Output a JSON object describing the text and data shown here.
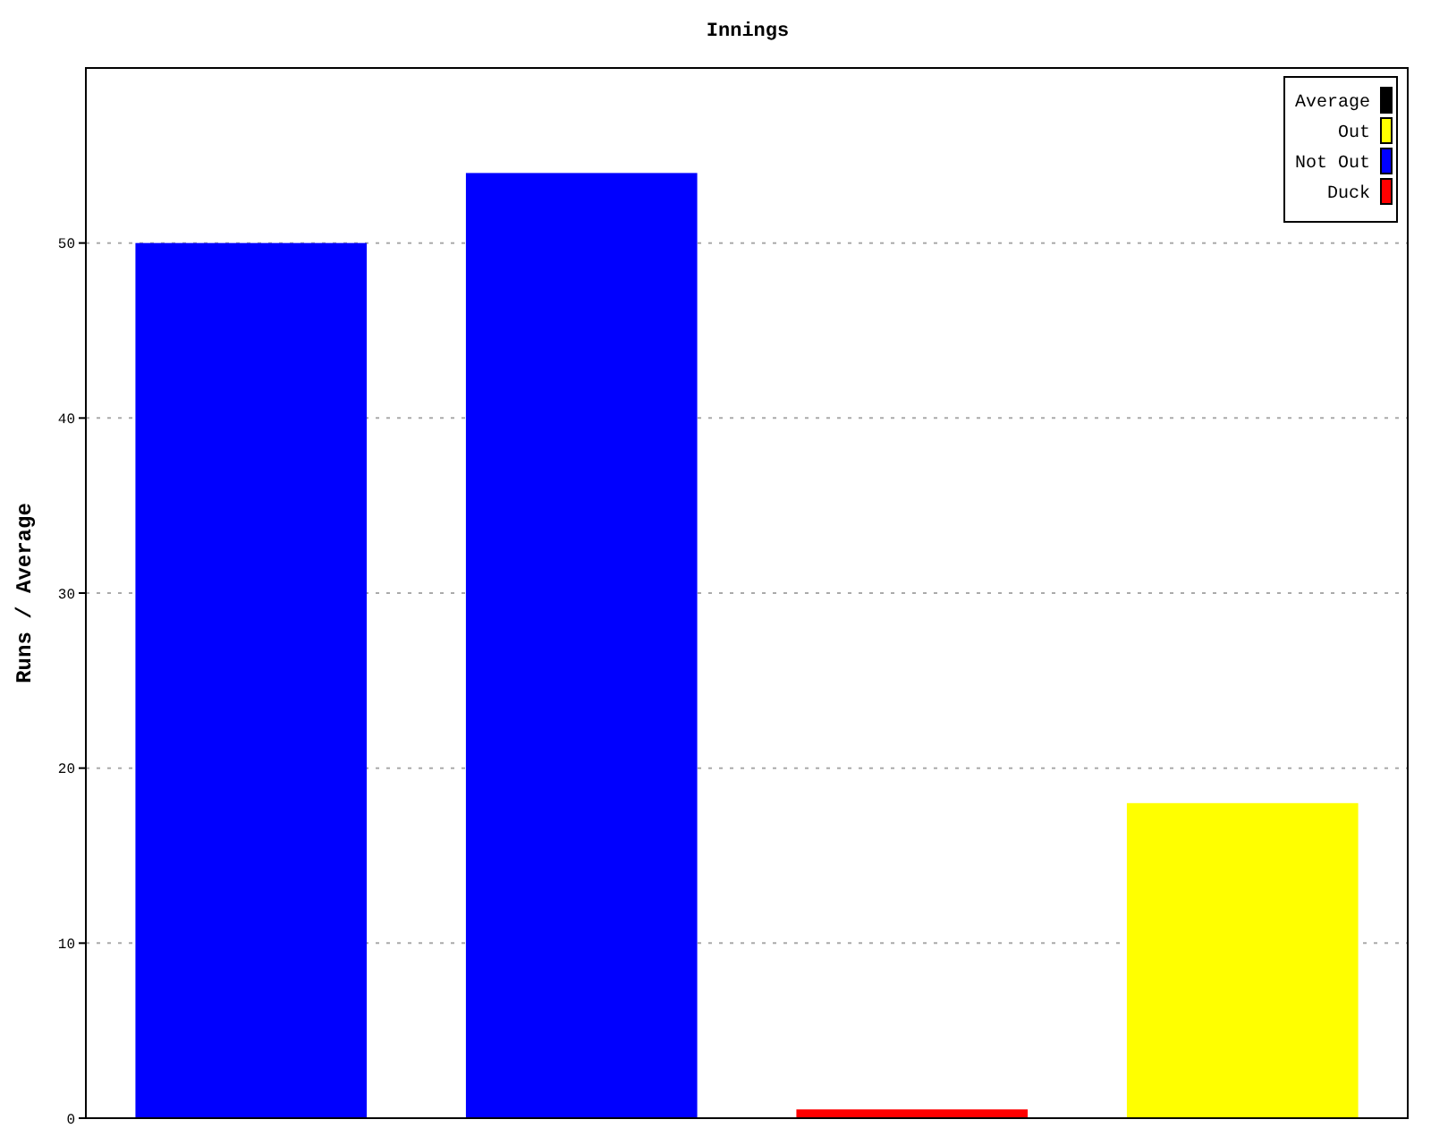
{
  "chart_data": {
    "type": "bar",
    "title": "Innings",
    "ylabel": "Runs / Average",
    "categories": [
      null,
      null,
      null,
      null
    ],
    "stacked": true,
    "series": [
      {
        "name": "Duck",
        "color": "#ff0000",
        "values": [
          null,
          null,
          0.5,
          null
        ]
      },
      {
        "name": "Not Out",
        "color": "#0000ff",
        "values": [
          50,
          54,
          null,
          null
        ]
      },
      {
        "name": "Out",
        "color": "#ffff00",
        "values": [
          null,
          null,
          null,
          18
        ]
      },
      {
        "name": "Average",
        "color": "#000000",
        "values": [
          null,
          null,
          null,
          null
        ]
      }
    ],
    "ylim": [
      0,
      60
    ],
    "yticks": [
      0,
      10,
      20,
      30,
      40,
      50
    ],
    "grid": "y",
    "legend": "top right",
    "tick_labels": "y"
  }
}
